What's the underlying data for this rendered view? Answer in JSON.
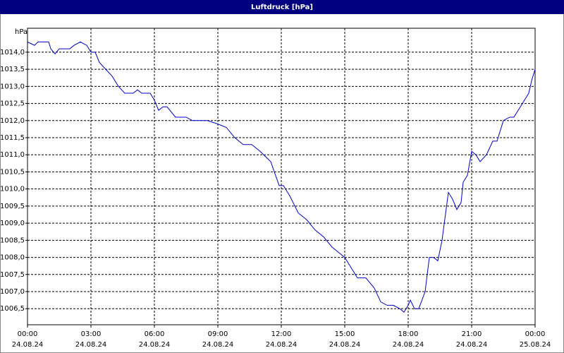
{
  "chart_data": {
    "type": "line",
    "title": "Luftdruck [hPa]",
    "y_label": "hPa",
    "color": "#0000cc",
    "grid": true,
    "x": [
      0,
      0.33,
      0.5,
      1.0,
      1.1,
      1.3,
      1.5,
      2.0,
      2.2,
      2.5,
      2.8,
      3.0,
      3.2,
      3.4,
      3.7,
      4.0,
      4.3,
      4.6,
      5.0,
      5.2,
      5.4,
      5.8,
      6.0,
      6.2,
      6.4,
      6.6,
      7.0,
      7.5,
      7.8,
      8.5,
      9.0,
      9.4,
      9.8,
      10.2,
      10.6,
      11.0,
      11.5,
      11.9,
      12.1,
      12.4,
      12.8,
      13.2,
      13.6,
      14.0,
      14.4,
      14.8,
      15.0,
      15.3,
      15.6,
      16.0,
      16.4,
      16.7,
      17.0,
      17.3,
      17.6,
      17.8,
      18.0,
      18.1,
      18.3,
      18.5,
      18.8,
      19.0,
      19.2,
      19.4,
      19.6,
      19.9,
      20.1,
      20.3,
      20.5,
      20.6,
      20.8,
      21.0,
      21.2,
      21.4,
      21.7,
      22.0,
      22.2,
      22.5,
      22.8,
      23.0,
      23.2,
      23.5,
      23.7,
      23.85,
      24.0
    ],
    "values": [
      1014.3,
      1014.2,
      1014.3,
      1014.3,
      1014.1,
      1013.95,
      1014.1,
      1014.1,
      1014.2,
      1014.3,
      1014.2,
      1014.0,
      1014.0,
      1013.7,
      1013.5,
      1013.3,
      1013.0,
      1012.8,
      1012.8,
      1012.9,
      1012.8,
      1012.8,
      1012.6,
      1012.3,
      1012.4,
      1012.4,
      1012.1,
      1012.1,
      1012.0,
      1012.0,
      1011.9,
      1011.8,
      1011.5,
      1011.3,
      1011.3,
      1011.1,
      1010.8,
      1010.1,
      1010.1,
      1009.8,
      1009.3,
      1009.1,
      1008.8,
      1008.6,
      1008.3,
      1008.1,
      1008.0,
      1007.7,
      1007.4,
      1007.4,
      1007.1,
      1006.7,
      1006.6,
      1006.6,
      1006.5,
      1006.4,
      1006.6,
      1006.75,
      1006.5,
      1006.5,
      1007.0,
      1008.0,
      1008.0,
      1007.9,
      1008.5,
      1009.9,
      1009.7,
      1009.4,
      1009.6,
      1010.2,
      1010.4,
      1011.1,
      1011.0,
      1010.8,
      1011.0,
      1011.4,
      1011.4,
      1012.0,
      1012.1,
      1012.1,
      1012.3,
      1012.6,
      1012.8,
      1013.2,
      1013.5
    ],
    "xlim": [
      0,
      24
    ],
    "xticks": [
      {
        "value": 0,
        "label": [
          "00:00",
          "24.08.24"
        ]
      },
      {
        "value": 3,
        "label": [
          "03:00",
          "24.08.24"
        ]
      },
      {
        "value": 6,
        "label": [
          "06:00",
          "24.08.24"
        ]
      },
      {
        "value": 9,
        "label": [
          "09:00",
          "24.08.24"
        ]
      },
      {
        "value": 12,
        "label": [
          "12:00",
          "24.08.24"
        ]
      },
      {
        "value": 15,
        "label": [
          "15:00",
          "24.08.24"
        ]
      },
      {
        "value": 18,
        "label": [
          "18:00",
          "24.08.24"
        ]
      },
      {
        "value": 21,
        "label": [
          "21:00",
          "24.08.24"
        ]
      },
      {
        "value": 24,
        "label": [
          "00:00",
          "25.08.24"
        ]
      }
    ],
    "ylim": [
      1006.03,
      1014.7
    ],
    "yticks": [
      {
        "value": 1006.5,
        "label": "1006,5"
      },
      {
        "value": 1007,
        "label": "1007,0"
      },
      {
        "value": 1007.5,
        "label": "1007,5"
      },
      {
        "value": 1008,
        "label": "1008,0"
      },
      {
        "value": 1008.5,
        "label": "1008,5"
      },
      {
        "value": 1009,
        "label": "1009,0"
      },
      {
        "value": 1009.5,
        "label": "1009,5"
      },
      {
        "value": 1010,
        "label": "1010,0"
      },
      {
        "value": 1010.5,
        "label": "1010,5"
      },
      {
        "value": 1011,
        "label": "1011,0"
      },
      {
        "value": 1011.5,
        "label": "1011,5"
      },
      {
        "value": 1012,
        "label": "1012,0"
      },
      {
        "value": 1012.5,
        "label": "1012,5"
      },
      {
        "value": 1013,
        "label": "1013,0"
      },
      {
        "value": 1013.5,
        "label": "1013,5"
      },
      {
        "value": 1014,
        "label": "1014,0"
      }
    ]
  }
}
